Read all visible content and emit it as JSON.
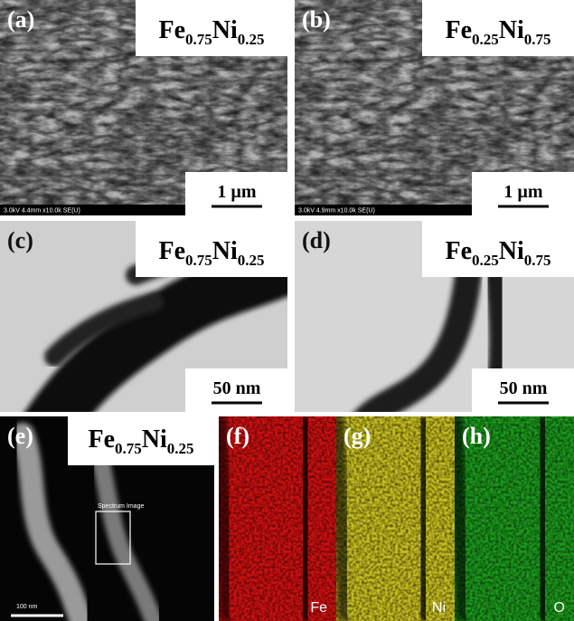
{
  "panels": [
    {
      "label": "(a)",
      "composition": [
        "Fe",
        "0.75",
        "Ni",
        "0.25"
      ],
      "scale_bar": "1 µm",
      "info": "3.0kV 4.4mm x10.0k SE(U)"
    },
    {
      "label": "(b)",
      "composition": [
        "Fe",
        "0.25",
        "Ni",
        "0.75"
      ],
      "scale_bar": "1 µm",
      "info": "3.0kV 4.9mm x10.0k SE(U)"
    },
    {
      "label": "(c)",
      "composition": [
        "Fe",
        "0.75",
        "Ni",
        "0.25"
      ],
      "scale_bar": "50 nm"
    },
    {
      "label": "(d)",
      "composition": [
        "Fe",
        "0.25",
        "Ni",
        "0.75"
      ],
      "scale_bar": "50 nm"
    },
    {
      "label": "(e)",
      "composition": [
        "Fe",
        "0.75",
        "Ni",
        "0.25"
      ],
      "scale_bar": "100 nm",
      "box_label": "Spectrum Image"
    },
    {
      "label": "(f)",
      "element": "Fe"
    },
    {
      "label": "(g)",
      "element": "Ni"
    },
    {
      "label": "(h)",
      "element": "O"
    }
  ]
}
